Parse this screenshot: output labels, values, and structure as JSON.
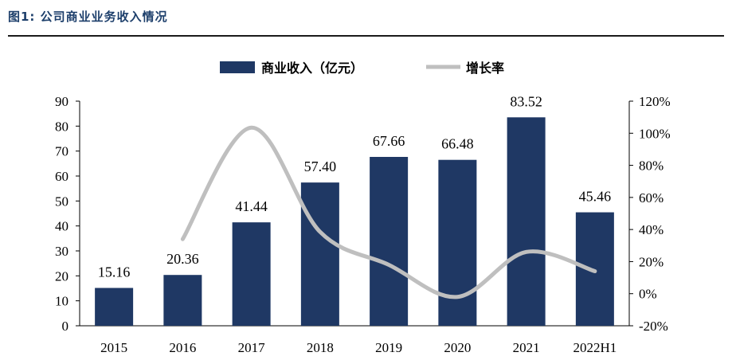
{
  "figure": {
    "title": "图1:  公司商业业务收入情况"
  },
  "chart_data": {
    "type": "bar",
    "categories": [
      "2015",
      "2016",
      "2017",
      "2018",
      "2019",
      "2020",
      "2021",
      "2022H1"
    ],
    "series": [
      {
        "name": "商业收入（亿元）",
        "type": "bar",
        "axis": "left",
        "color": "#1f3864",
        "values": [
          15.16,
          20.36,
          41.44,
          57.4,
          67.66,
          66.48,
          83.52,
          45.46
        ],
        "labels": [
          "15.16",
          "20.36",
          "41.44",
          "57.40",
          "67.66",
          "66.48",
          "83.52",
          "45.46"
        ]
      },
      {
        "name": "增长率",
        "type": "line",
        "axis": "right",
        "color": "#bfbfbf",
        "values": [
          null,
          0.34,
          1.035,
          0.385,
          0.18,
          -0.02,
          0.26,
          0.14
        ]
      }
    ],
    "y_left": {
      "min": 0,
      "max": 90,
      "ticks": [
        "0",
        "10",
        "20",
        "30",
        "40",
        "50",
        "60",
        "70",
        "80",
        "90"
      ]
    },
    "y_right": {
      "min": -0.2,
      "max": 1.2,
      "ticks": [
        "-20%",
        "0%",
        "20%",
        "40%",
        "60%",
        "80%",
        "100%",
        "120%"
      ]
    },
    "legend": "top-center",
    "grid": false
  }
}
